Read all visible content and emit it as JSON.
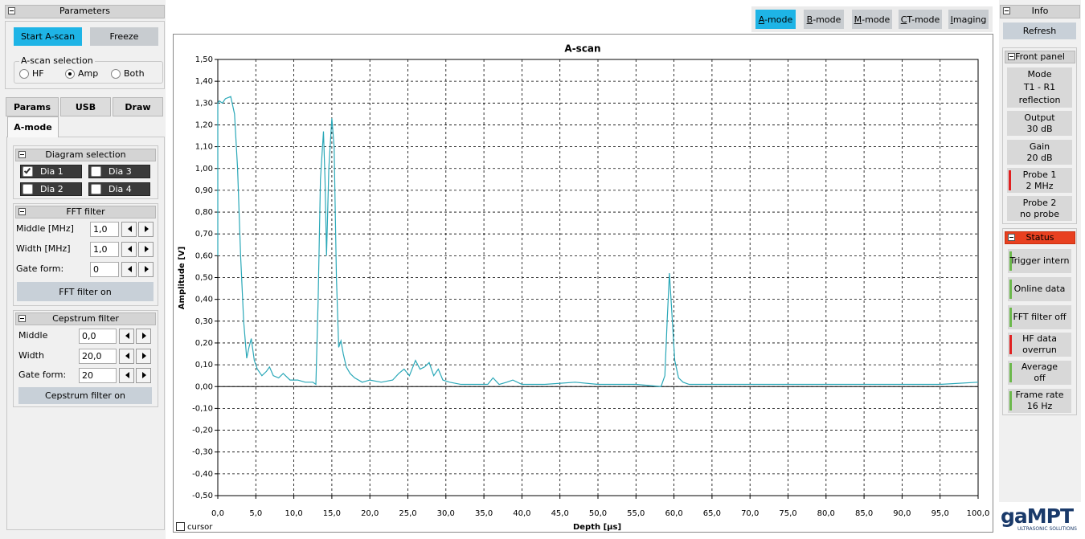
{
  "parameters": {
    "title": "Parameters",
    "start_button": "Start A-scan",
    "freeze_button": "Freeze",
    "ascan_selection": {
      "label": "A-scan selection",
      "options": [
        "HF",
        "Amp",
        "Both"
      ],
      "selected": 1
    }
  },
  "tabs": [
    "Params",
    "USB",
    "Draw",
    "A-mode"
  ],
  "diagram_selection": {
    "title": "Diagram selection",
    "items": [
      "Dia 1",
      "Dia 3",
      "Dia 2",
      "Dia 4"
    ],
    "checked": [
      true,
      false,
      false,
      false
    ]
  },
  "fft_filter": {
    "title": "FFT filter",
    "fields": [
      {
        "label": "Middle [MHz]",
        "value": "1,0"
      },
      {
        "label": "Width [MHz]",
        "value": "1,0"
      },
      {
        "label": "Gate form:",
        "value": "0"
      }
    ],
    "button": "FFT filter on"
  },
  "cepstrum_filter": {
    "title": "Cepstrum filter",
    "fields": [
      {
        "label": "Middle",
        "value": "0,0"
      },
      {
        "label": "Width",
        "value": "20,0"
      },
      {
        "label": "Gate form:",
        "value": "20"
      }
    ],
    "button": "Cepstrum filter on"
  },
  "mode_buttons": [
    "A-mode",
    "B-mode",
    "M-mode",
    "CT-mode",
    "Imaging"
  ],
  "cursor": "cursor",
  "info": {
    "title": "Info",
    "refresh": "Refresh",
    "front_panel": {
      "title": "Front panel",
      "items": [
        {
          "lines": [
            "Mode",
            "T1 - R1",
            "reflection"
          ]
        },
        {
          "lines": [
            "Output",
            "30 dB"
          ]
        },
        {
          "lines": [
            "Gain",
            "20 dB"
          ]
        },
        {
          "lines": [
            "Probe 1",
            "2 MHz"
          ],
          "indicator": "#e02020"
        },
        {
          "lines": [
            "Probe 2",
            "no probe"
          ]
        }
      ]
    },
    "status": {
      "title": "Status",
      "items": [
        {
          "lines": [
            "Trigger intern"
          ],
          "indicator": "#6cb84c"
        },
        {
          "lines": [
            "Online data"
          ],
          "indicator": "#6cb84c"
        },
        {
          "lines": [
            "FFT filter off"
          ],
          "indicator": "#6cb84c"
        },
        {
          "lines": [
            "HF data",
            "overrun"
          ],
          "indicator": "#e02020"
        },
        {
          "lines": [
            "Average",
            "off"
          ],
          "indicator": "#6cb84c"
        },
        {
          "lines": [
            "Frame rate",
            "16 Hz"
          ],
          "indicator": "#6cb84c"
        }
      ]
    }
  },
  "logo": {
    "name": "gaMPT",
    "tagline": "ULTRASONIC SOLUTIONS"
  },
  "chart_data": {
    "type": "line",
    "title": "A-scan",
    "x_label": "Depth [µs]",
    "y_label": "Amplitude [V]",
    "color": "#2aa8b8",
    "grid": true,
    "x": [
      0,
      0,
      0.2,
      0.6,
      1.0,
      1.7,
      2.2,
      2.6,
      3.0,
      3.4,
      3.8,
      4.1,
      4.4,
      4.8,
      5.2,
      5.8,
      6.4,
      6.8,
      7.3,
      8.0,
      8.6,
      9.5,
      10.5,
      11.5,
      12.5,
      12.9,
      13.2,
      13.5,
      13.9,
      14.1,
      14.3,
      14.6,
      15.0,
      15.3,
      15.6,
      15.9,
      16.2,
      16.5,
      16.9,
      17.4,
      18.0,
      19.0,
      20.0,
      21.5,
      23.0,
      23.8,
      24.5,
      25.2,
      26.0,
      26.6,
      27.2,
      27.8,
      28.4,
      29.0,
      29.6,
      30.5,
      32.0,
      34.0,
      35.5,
      36.2,
      37.0,
      38.0,
      38.8,
      40.0,
      43.0,
      47.0,
      50.0,
      55.0,
      58.3,
      58.8,
      59.1,
      59.4,
      59.7,
      60.1,
      60.6,
      61.2,
      62.0,
      65.0,
      70.0,
      75.0,
      80.0,
      85.0,
      90.0,
      95.0,
      100.0
    ],
    "values": [
      0.6,
      1.3,
      1.31,
      1.3,
      1.32,
      1.33,
      1.25,
      1.0,
      0.6,
      0.3,
      0.13,
      0.18,
      0.22,
      0.12,
      0.08,
      0.05,
      0.07,
      0.09,
      0.05,
      0.04,
      0.06,
      0.03,
      0.03,
      0.02,
      0.02,
      0.01,
      0.4,
      0.95,
      1.17,
      0.95,
      0.6,
      1.0,
      1.23,
      1.1,
      0.5,
      0.18,
      0.21,
      0.15,
      0.09,
      0.06,
      0.04,
      0.02,
      0.03,
      0.02,
      0.03,
      0.06,
      0.08,
      0.05,
      0.12,
      0.08,
      0.09,
      0.11,
      0.05,
      0.08,
      0.03,
      0.02,
      0.01,
      0.01,
      0.01,
      0.04,
      0.01,
      0.02,
      0.03,
      0.01,
      0.01,
      0.02,
      0.01,
      0.01,
      0.0,
      0.05,
      0.3,
      0.52,
      0.35,
      0.12,
      0.04,
      0.02,
      0.01,
      0.01,
      0.01,
      0.01,
      0.01,
      0.01,
      0.01,
      0.01,
      0.02
    ],
    "xlim": [
      0,
      100
    ],
    "ylim": [
      -0.5,
      1.5
    ],
    "xticks": [
      {
        "value": 0,
        "label": "0,0"
      },
      {
        "value": 5,
        "label": "5,0"
      },
      {
        "value": 10,
        "label": "10,0"
      },
      {
        "value": 15,
        "label": "15,0"
      },
      {
        "value": 20,
        "label": "20,0"
      },
      {
        "value": 25,
        "label": "25,0"
      },
      {
        "value": 30,
        "label": "30,0"
      },
      {
        "value": 35,
        "label": "35,0"
      },
      {
        "value": 40,
        "label": "40,0"
      },
      {
        "value": 45,
        "label": "45,0"
      },
      {
        "value": 50,
        "label": "50,0"
      },
      {
        "value": 55,
        "label": "55,0"
      },
      {
        "value": 60,
        "label": "60,0"
      },
      {
        "value": 65,
        "label": "65,0"
      },
      {
        "value": 70,
        "label": "70,0"
      },
      {
        "value": 75,
        "label": "75,0"
      },
      {
        "value": 80,
        "label": "80,0"
      },
      {
        "value": 85,
        "label": "85,0"
      },
      {
        "value": 90,
        "label": "90,0"
      },
      {
        "value": 95,
        "label": "95,0"
      },
      {
        "value": 100,
        "label": "100,0"
      }
    ],
    "yticks": [
      {
        "value": 1.5,
        "label": "1,50"
      },
      {
        "value": 1.4,
        "label": "1,40"
      },
      {
        "value": 1.3,
        "label": "1,30"
      },
      {
        "value": 1.2,
        "label": "1,20"
      },
      {
        "value": 1.1,
        "label": "1,10"
      },
      {
        "value": 1.0,
        "label": "1,00"
      },
      {
        "value": 0.9,
        "label": "0,90"
      },
      {
        "value": 0.8,
        "label": "0,80"
      },
      {
        "value": 0.7,
        "label": "0,70"
      },
      {
        "value": 0.6,
        "label": "0,60"
      },
      {
        "value": 0.5,
        "label": "0,50"
      },
      {
        "value": 0.4,
        "label": "0,40"
      },
      {
        "value": 0.3,
        "label": "0,30"
      },
      {
        "value": 0.2,
        "label": "0,20"
      },
      {
        "value": 0.1,
        "label": "0,10"
      },
      {
        "value": 0,
        "label": "0,00"
      },
      {
        "value": -0.1,
        "label": "-0,10"
      },
      {
        "value": -0.2,
        "label": "-0,20"
      },
      {
        "value": -0.3,
        "label": "-0,30"
      },
      {
        "value": -0.4,
        "label": "-0,40"
      },
      {
        "value": -0.5,
        "label": "-0,50"
      }
    ]
  }
}
